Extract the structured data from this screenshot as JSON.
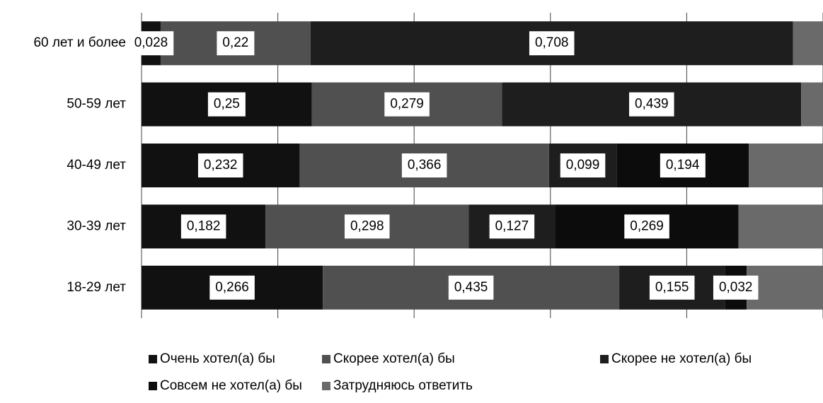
{
  "chart_data": {
    "type": "stacked-bar-horizontal",
    "categories": [
      "60 лет и более",
      "50-59 лет",
      "40-49 лет",
      "30-39 лет",
      "18-29 лет"
    ],
    "series": [
      {
        "name": "Очень хотел(а) бы",
        "color": "#111111",
        "values": [
          0.028,
          0.25,
          0.232,
          0.182,
          0.266
        ],
        "value_labels": [
          "0,028",
          "0,25",
          "0,232",
          "0,182",
          "0,266"
        ]
      },
      {
        "name": "Скорее хотел(а) бы",
        "color": "#505050",
        "values": [
          0.22,
          0.279,
          0.366,
          0.298,
          0.435
        ],
        "value_labels": [
          "0,22",
          "0,279",
          "0,366",
          "0,298",
          "0,435"
        ]
      },
      {
        "name": "Скорее не хотел(а) бы",
        "color": "#1e1e1e",
        "values": [
          0.708,
          0.439,
          0.099,
          0.127,
          0.155
        ],
        "value_labels": [
          "0,708",
          "0,439",
          "0,099",
          "0,127",
          "0,155"
        ]
      },
      {
        "name": "Совсем не хотел(а) бы",
        "color": "#0c0c0c",
        "values": [
          null,
          null,
          0.194,
          0.269,
          0.032
        ],
        "value_labels": [
          null,
          null,
          "0,194",
          "0,269",
          "0,032"
        ]
      },
      {
        "name": "Затрудняюсь ответить",
        "color": "#6a6a6a",
        "values": [
          0.044,
          0.032,
          0.109,
          0.124,
          0.112
        ],
        "value_labels": [
          null,
          null,
          null,
          null,
          null
        ]
      }
    ],
    "xlim": [
      0,
      1
    ],
    "xticks": [
      0,
      0.2,
      0.4,
      0.6,
      0.8,
      1
    ],
    "grid": true
  }
}
